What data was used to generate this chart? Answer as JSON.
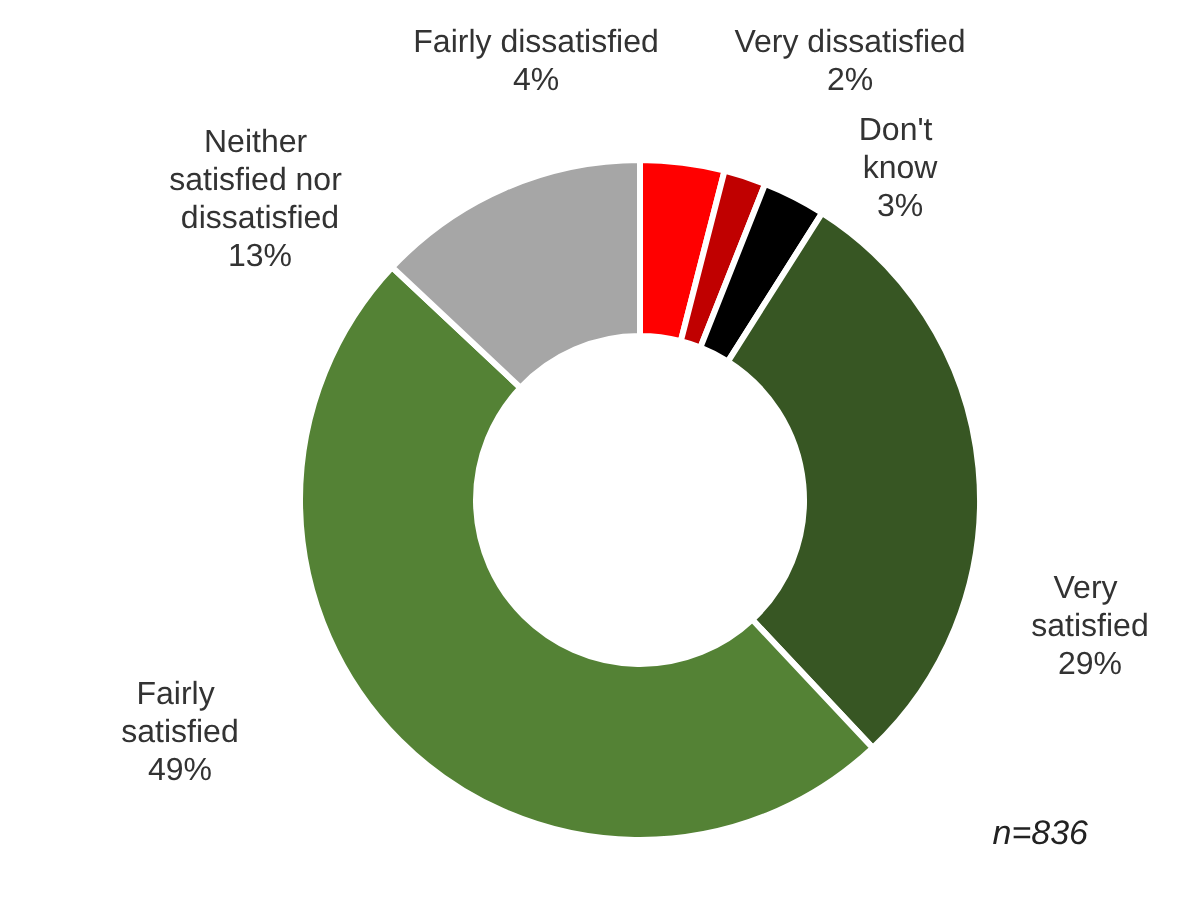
{
  "chart_data": {
    "type": "donut",
    "categories": [
      "Fairly dissatisfied",
      "Very dissatisfied",
      "Don't know",
      "Very satisfied",
      "Fairly satisfied",
      "Neither satisfied nor dissatisfied"
    ],
    "values": [
      4,
      2,
      3,
      29,
      49,
      13
    ],
    "value_labels": [
      "4%",
      "2%",
      "3%",
      "29%",
      "49%",
      "13%"
    ],
    "colors": [
      "#ff0000",
      "#c00000",
      "#000000",
      "#375623",
      "#548235",
      "#a6a6a6"
    ],
    "annotations": [
      "n=836"
    ],
    "legend": false
  }
}
